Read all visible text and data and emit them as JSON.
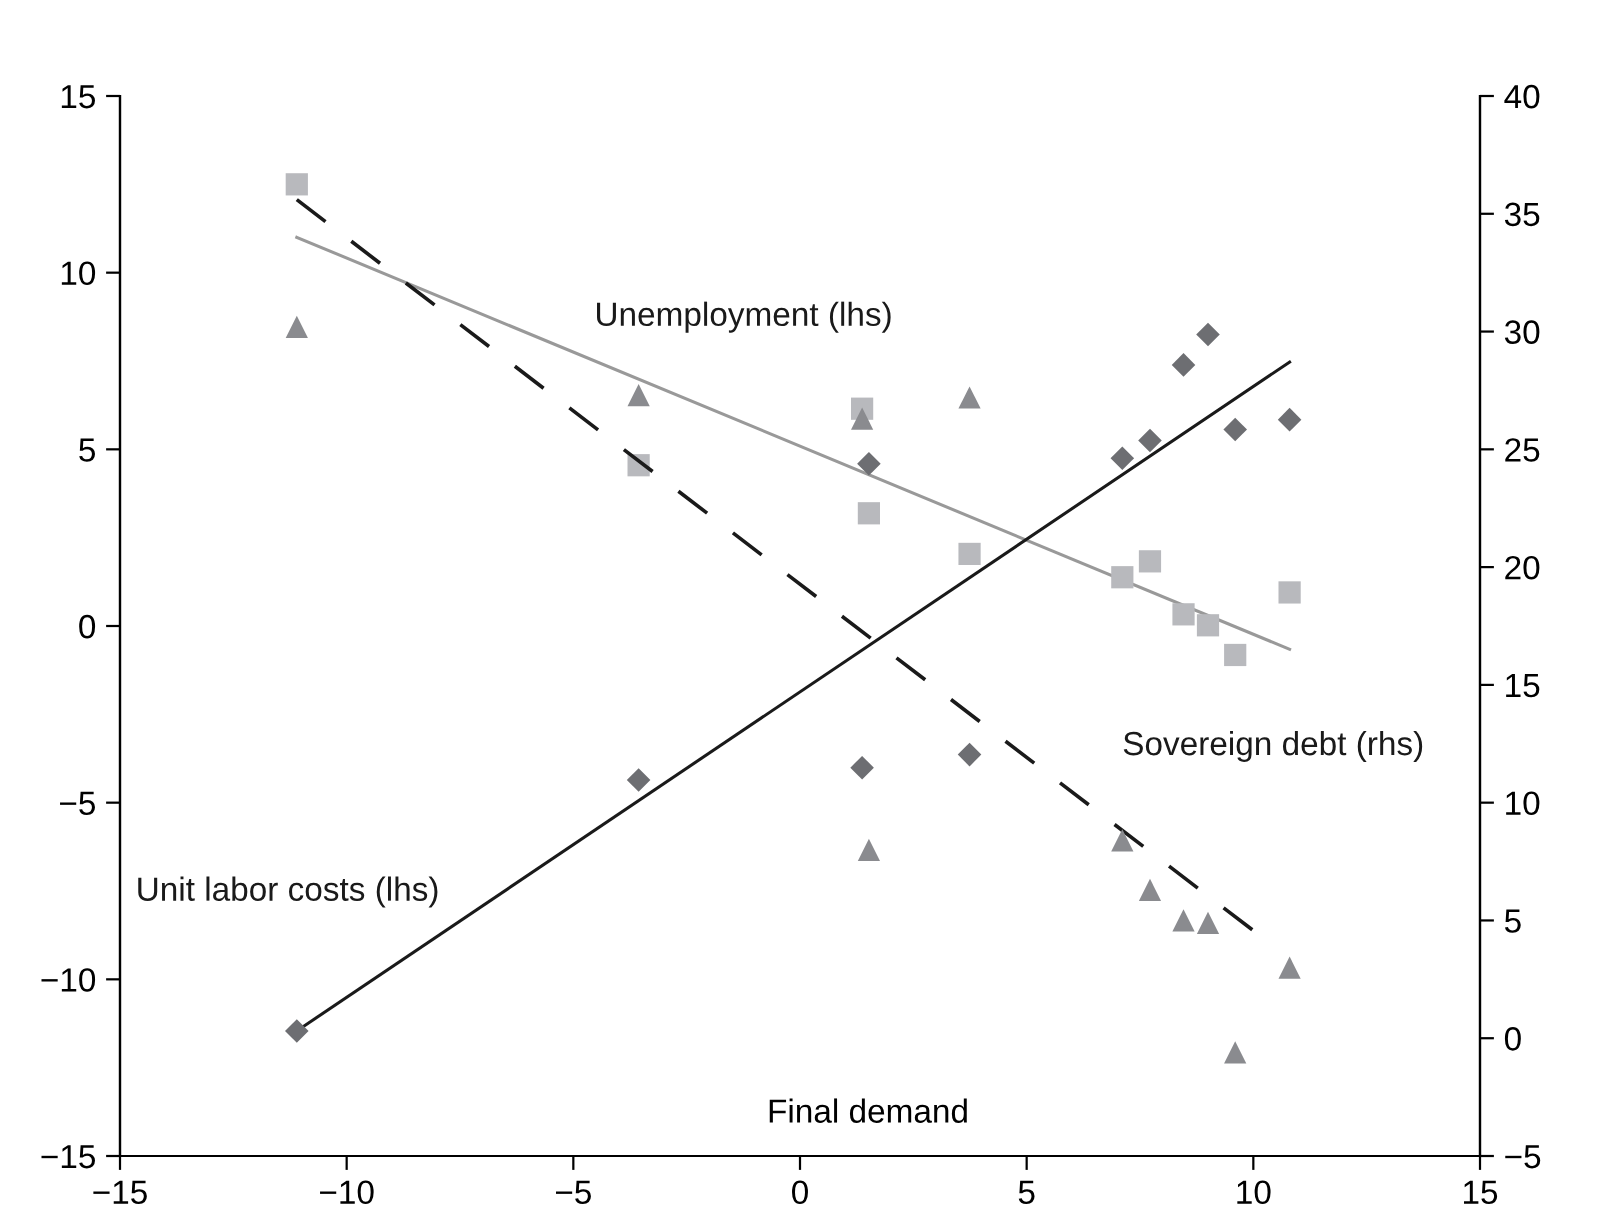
{
  "chart_data": {
    "type": "scatter",
    "xlabel": "Final demand",
    "xlim": [
      -15,
      15
    ],
    "xticks": [
      -15,
      -10,
      -5,
      0,
      5,
      10,
      15
    ],
    "ylim": [
      -15,
      15
    ],
    "yticks": [
      -15,
      -10,
      -5,
      0,
      5,
      10,
      15
    ],
    "y2lim": [
      -5,
      40
    ],
    "y2ticks": [
      -5,
      0,
      5,
      10,
      15,
      20,
      25,
      30,
      35,
      40
    ],
    "grid": false,
    "legend": false,
    "series": [
      {
        "marker": "square",
        "color": "#b8b9bd",
        "x": [
          -11.1,
          -3.56,
          1.37,
          1.52,
          3.74,
          7.11,
          7.72,
          8.46,
          9.0,
          9.6,
          10.8
        ],
        "values": [
          12.5,
          4.55,
          6.15,
          3.19,
          2.04,
          1.38,
          1.83,
          0.33,
          0.02,
          -0.82,
          0.95
        ]
      },
      {
        "marker": "diamond",
        "color": "#6d6e72",
        "x": [
          -11.1,
          -3.56,
          1.37,
          1.52,
          3.74,
          7.11,
          7.72,
          8.46,
          9.0,
          9.6,
          10.8
        ],
        "values": [
          -11.46,
          -4.36,
          -4.01,
          4.59,
          -3.64,
          4.75,
          5.25,
          7.39,
          8.25,
          5.56,
          5.84
        ]
      },
      {
        "marker": "triangle",
        "axis": "y2",
        "color": "#8a8b8f",
        "x": [
          -11.1,
          -3.56,
          1.37,
          1.52,
          3.74,
          7.11,
          7.72,
          8.46,
          9.0,
          9.6,
          10.8
        ],
        "values": [
          30.2,
          27.3,
          26.3,
          8.0,
          27.2,
          8.4,
          6.3,
          5.0,
          4.9,
          -0.6,
          3.0
        ]
      },
      {
        "type": "line",
        "name": "Unemployment (lhs)",
        "line_style": "solid",
        "color": "#999999",
        "x": [
          -11.1,
          10.8
        ],
        "values": [
          11.0,
          -0.66
        ]
      },
      {
        "type": "line",
        "name": "Unit labor costs (lhs)",
        "line_style": "solid",
        "color": "#1a1a1a",
        "x": [
          -11.1,
          10.8
        ],
        "values": [
          -11.46,
          7.47
        ]
      },
      {
        "type": "line",
        "name": "Sovereign debt (rhs)",
        "line_style": "dashed",
        "axis": "y2",
        "color": "#1a1a1a",
        "x": [
          -11.1,
          9.98
        ],
        "values": [
          35.6,
          4.6
        ]
      }
    ]
  }
}
